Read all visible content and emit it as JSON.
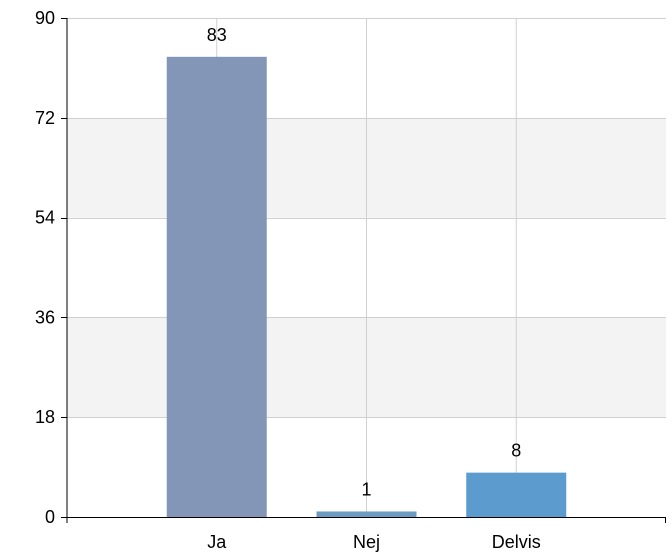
{
  "chart_data": {
    "type": "bar",
    "categories": [
      "Ja",
      "Nej",
      "Delvis"
    ],
    "values": [
      83,
      1,
      8
    ],
    "bar_colors": [
      "#8496b7",
      "#6e9cc0",
      "#5c9bce"
    ],
    "ylim": [
      0,
      90
    ],
    "yticks": [
      "0",
      "18",
      "36",
      "54",
      "72",
      "90"
    ],
    "grid": true,
    "band_colors": [
      "#ffffff",
      "#f3f3f3"
    ],
    "gridline_color": "#d0d0d0",
    "axis_color": "#000000",
    "title": "",
    "xlabel": "",
    "ylabel": ""
  }
}
